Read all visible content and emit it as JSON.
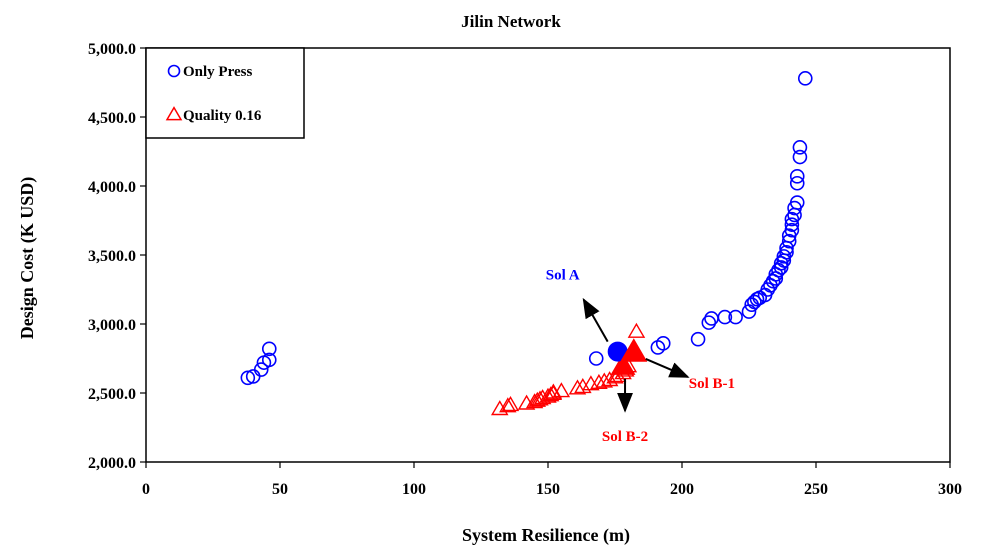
{
  "chart_data": {
    "type": "scatter",
    "title": "Jilin Network",
    "xlabel": "System Resilience (m)",
    "ylabel": "Design Cost (K USD)",
    "xlim": [
      0,
      300
    ],
    "ylim": [
      2000,
      5000
    ],
    "x_ticks": [
      "0",
      "50",
      "100",
      "150",
      "200",
      "250",
      "300"
    ],
    "y_ticks": [
      "2,000.0",
      "2,500.0",
      "3,000.0",
      "3,500.0",
      "4,000.0",
      "4,500.0",
      "5,000.0"
    ],
    "grid": false,
    "legend": "top-left",
    "series": [
      {
        "name": "Only Press",
        "marker": "circle-open",
        "color": "#0000ff",
        "points": [
          [
            38,
            2610
          ],
          [
            40,
            2620
          ],
          [
            43,
            2670
          ],
          [
            44,
            2720
          ],
          [
            46,
            2740
          ],
          [
            46,
            2820
          ],
          [
            168,
            2750
          ],
          [
            191,
            2830
          ],
          [
            193,
            2860
          ],
          [
            206,
            2890
          ],
          [
            210,
            3010
          ],
          [
            211,
            3040
          ],
          [
            216,
            3050
          ],
          [
            220,
            3050
          ],
          [
            225,
            3090
          ],
          [
            226,
            3140
          ],
          [
            227,
            3160
          ],
          [
            228,
            3180
          ],
          [
            229,
            3190
          ],
          [
            231,
            3210
          ],
          [
            232,
            3250
          ],
          [
            233,
            3280
          ],
          [
            234,
            3310
          ],
          [
            235,
            3330
          ],
          [
            235,
            3360
          ],
          [
            236,
            3390
          ],
          [
            237,
            3410
          ],
          [
            237,
            3440
          ],
          [
            238,
            3460
          ],
          [
            238,
            3490
          ],
          [
            239,
            3520
          ],
          [
            239,
            3550
          ],
          [
            240,
            3600
          ],
          [
            240,
            3640
          ],
          [
            241,
            3680
          ],
          [
            241,
            3720
          ],
          [
            241,
            3760
          ],
          [
            242,
            3790
          ],
          [
            242,
            3840
          ],
          [
            243,
            3880
          ],
          [
            243,
            4020
          ],
          [
            243,
            4070
          ],
          [
            244,
            4210
          ],
          [
            244,
            4280
          ],
          [
            246,
            4780
          ]
        ]
      },
      {
        "name": "Quality 0.16",
        "marker": "triangle-open",
        "color": "#ff0000",
        "points": [
          [
            132,
            2380
          ],
          [
            135,
            2400
          ],
          [
            136,
            2410
          ],
          [
            142,
            2420
          ],
          [
            145,
            2430
          ],
          [
            146,
            2440
          ],
          [
            147,
            2450
          ],
          [
            148,
            2460
          ],
          [
            150,
            2470
          ],
          [
            151,
            2480
          ],
          [
            152,
            2490
          ],
          [
            152,
            2500
          ],
          [
            155,
            2510
          ],
          [
            161,
            2530
          ],
          [
            163,
            2540
          ],
          [
            166,
            2560
          ],
          [
            169,
            2570
          ],
          [
            171,
            2580
          ],
          [
            173,
            2590
          ],
          [
            175,
            2610
          ],
          [
            176,
            2620
          ],
          [
            178,
            2640
          ],
          [
            179,
            2660
          ],
          [
            180,
            2690
          ],
          [
            183,
            2940
          ]
        ]
      }
    ],
    "annotations": [
      {
        "label": "Sol A",
        "color": "#0000ff",
        "x": 176,
        "y": 2800,
        "marker": "circle-filled"
      },
      {
        "label": "Sol B-1",
        "color": "#ff0000",
        "x": 182,
        "y": 2790,
        "marker": "triangle-filled"
      },
      {
        "label": "Sol B-2",
        "color": "#ff0000",
        "x": 178,
        "y": 2690,
        "marker": "triangle-filled"
      }
    ]
  }
}
